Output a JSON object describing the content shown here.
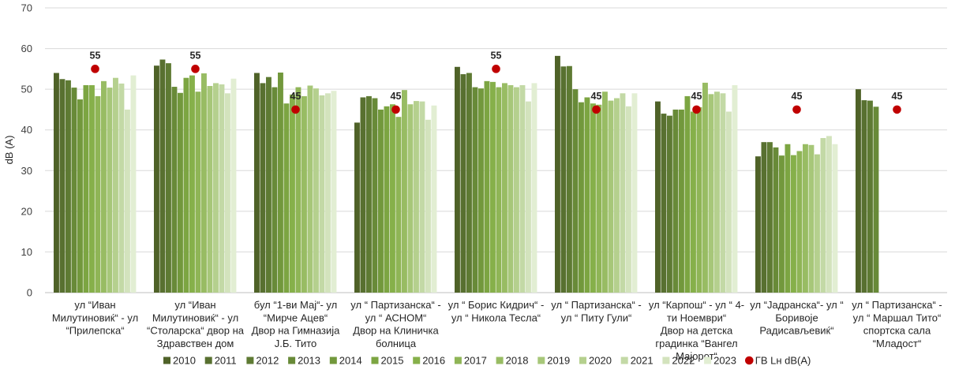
{
  "chart_data": {
    "type": "bar",
    "title": "",
    "xlabel": "",
    "ylabel": "dB (A)",
    "ylim": [
      0,
      70
    ],
    "yticks": [
      0,
      10,
      20,
      30,
      40,
      50,
      60,
      70
    ],
    "grid": true,
    "legend_position": "bottom",
    "categories": [
      [
        "ул “Иван",
        "Милутиновиќ“ - ул",
        "“Прилепска“"
      ],
      [
        "ул “Иван",
        "Милутиновиќ“ - ул",
        "“Столарска“ двор на",
        "Здравствен дом"
      ],
      [
        "бул “1-ви Мај“- ул",
        "“Мирче Ацев“",
        "Двор на Гимназија",
        "Ј.Б. Тито"
      ],
      [
        "ул “ Партизанска“ -",
        "ул “ АСНОМ“",
        "Двор на Клиничка",
        "болница"
      ],
      [
        "ул “ Борис Кидрич“ -",
        "ул “ Никола Тесла“"
      ],
      [
        "ул “ Партизанска“ -",
        "ул “ Питу Гули“"
      ],
      [
        "ул “Карпош“ - ул “ 4-",
        "ти Ноември“",
        "Двор на детска",
        "градинка “Вангел",
        "Мајорот“"
      ],
      [
        "ул “Јадранска“- ул “",
        "Боривоје",
        "Радисављевиќ“"
      ],
      [
        "ул “ Партизанска“ -",
        "ул “ Маршал Тито“",
        "спортска сала",
        "“Младост“"
      ]
    ],
    "series": [
      {
        "name": "2010",
        "color": "#4f6228",
        "values": [
          54.0,
          55.8,
          54.0,
          41.8,
          55.5,
          58.2,
          47.0,
          33.5,
          50.0
        ]
      },
      {
        "name": "2011",
        "color": "#587030",
        "values": [
          52.5,
          57.3,
          51.5,
          48.0,
          53.7,
          55.6,
          44.0,
          37.0,
          47.3
        ]
      },
      {
        "name": "2012",
        "color": "#5e7a33",
        "values": [
          52.2,
          56.4,
          53.0,
          48.3,
          54.0,
          55.7,
          43.5,
          37.0,
          47.2
        ]
      },
      {
        "name": "2013",
        "color": "#688a38",
        "values": [
          50.4,
          50.6,
          50.5,
          47.8,
          50.5,
          50.0,
          45.0,
          35.7,
          45.7
        ]
      },
      {
        "name": "2014",
        "color": "#72983c",
        "values": [
          47.5,
          49.1,
          54.1,
          45.0,
          50.2,
          46.8,
          45.0,
          33.7,
          null
        ]
      },
      {
        "name": "2015",
        "color": "#7ca542",
        "values": [
          51.0,
          52.8,
          46.5,
          45.8,
          52.0,
          48.0,
          48.3,
          36.5,
          null
        ]
      },
      {
        "name": "2016",
        "color": "#86b04a",
        "values": [
          51.0,
          53.4,
          48.7,
          46.3,
          51.8,
          46.5,
          44.5,
          33.8,
          null
        ]
      },
      {
        "name": "2017",
        "color": "#8fb556",
        "values": [
          48.3,
          49.4,
          50.5,
          43.2,
          50.5,
          46.2,
          45.6,
          34.8,
          null
        ]
      },
      {
        "name": "2018",
        "color": "#98bc63",
        "values": [
          52.0,
          53.9,
          48.3,
          49.8,
          51.5,
          49.4,
          51.6,
          36.5,
          null
        ]
      },
      {
        "name": "2019",
        "color": "#a7c779",
        "values": [
          50.4,
          50.8,
          50.9,
          46.3,
          51.0,
          47.2,
          48.8,
          36.3,
          null
        ]
      },
      {
        "name": "2020",
        "color": "#b5d08e",
        "values": [
          52.8,
          51.5,
          50.2,
          47.1,
          50.5,
          47.8,
          49.4,
          34.0,
          null
        ]
      },
      {
        "name": "2021",
        "color": "#c3d9a6",
        "values": [
          51.4,
          51.2,
          48.5,
          47.0,
          51.0,
          49.0,
          49.0,
          38.0,
          null
        ]
      },
      {
        "name": "2022",
        "color": "#d3e3bd",
        "values": [
          45.0,
          49.0,
          49.0,
          42.5,
          47.0,
          45.8,
          44.5,
          38.5,
          null
        ]
      },
      {
        "name": "2023",
        "color": "#e2eed3",
        "values": [
          53.4,
          52.6,
          49.6,
          46.0,
          51.5,
          49.0,
          51.0,
          36.5,
          null
        ]
      }
    ],
    "limit_series": {
      "name": "ГВ Lн dB(A)",
      "color": "#c00000",
      "values": [
        55,
        55,
        45,
        45,
        55,
        45,
        45,
        45,
        45
      ],
      "labels": [
        "55",
        "55",
        "45",
        "45",
        "55",
        "45",
        "45",
        "45",
        "45"
      ]
    }
  }
}
